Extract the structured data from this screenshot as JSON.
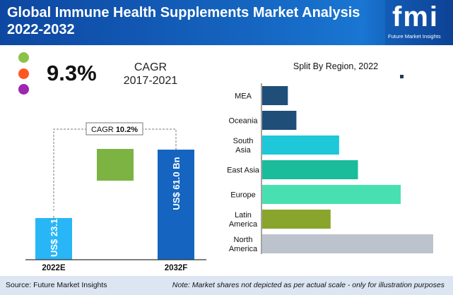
{
  "header": {
    "title": "Global Immune Health Supplements Market Analysis 2022-2032",
    "logo_text": "fmi",
    "logo_subtitle": "Future Market Insights"
  },
  "summary": {
    "cagr_value": "9.3%",
    "cagr_label": "CAGR",
    "cagr_period": "2017-2021",
    "dot_colors": [
      "#8bc34a",
      "#ff5722",
      "#9c27b0"
    ]
  },
  "chart_data": [
    {
      "type": "bar",
      "categories": [
        "2022E",
        "2032F"
      ],
      "values": [
        23.1,
        61.0
      ],
      "bar_labels": [
        "US$ 23.1 Bn",
        "US$ 61.0 Bn"
      ],
      "colors": [
        "#29b6f6",
        "#1565c0"
      ],
      "growth_label_prefix": "CAGR",
      "growth_label_value": "10.2%",
      "growth_color": "#7cb342"
    },
    {
      "type": "bar",
      "orientation": "horizontal",
      "title": "Split By Region, 2022",
      "categories": [
        "MEA",
        "Oceania",
        "South Asia",
        "East Asia",
        "Europe",
        "Latin America",
        "North America"
      ],
      "category_lines": [
        [
          "MEA"
        ],
        [
          "Oceania"
        ],
        [
          "South",
          "Asia"
        ],
        [
          "East Asia"
        ],
        [
          "Europe"
        ],
        [
          "Latin",
          "America"
        ],
        [
          "North",
          "America"
        ]
      ],
      "values": [
        15,
        20,
        45,
        56,
        81,
        40,
        100
      ],
      "colors": [
        "#1f4e79",
        "#1f4e79",
        "#1ec8d8",
        "#1abc9c",
        "#48e0b0",
        "#8aa52c",
        "#bcc3cc"
      ]
    }
  ],
  "footer": {
    "source": "Source: Future Market Insights",
    "note": "Note: Market shares not depicted as per actual scale - only for illustration purposes"
  }
}
